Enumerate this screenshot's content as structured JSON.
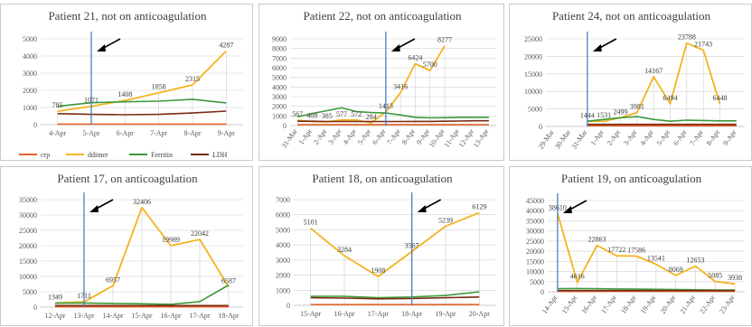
{
  "chart_data": [
    {
      "type": "line",
      "title": "Patient 21, not on anticoagulation",
      "categories": [
        "4-Apr",
        "5-Apr",
        "6-Apr",
        "7-Apr",
        "8-Apr",
        "9-Apr"
      ],
      "ylim": [
        0,
        5000
      ],
      "yticks": [
        "0",
        "1000",
        "2000",
        "3000",
        "4000",
        "5000"
      ],
      "x_labels_rotated": false,
      "marker_index": 1,
      "series": [
        {
          "name": "crp",
          "color": "#e5642a",
          "values": [
            30,
            30,
            30,
            30,
            30,
            30
          ]
        },
        {
          "name": "ddimer",
          "color": "#f4b31f",
          "values": [
            785,
            1071,
            1408,
            1858,
            2315,
            4287
          ]
        },
        {
          "name": "Ferritin",
          "color": "#3d9a3a",
          "values": [
            1070,
            1280,
            1330,
            1370,
            1480,
            1270
          ]
        },
        {
          "name": "LDH",
          "color": "#7a2a12",
          "values": [
            640,
            600,
            580,
            600,
            680,
            790
          ]
        }
      ],
      "labels": [
        {
          "series": 1,
          "index": 0,
          "text": "785"
        },
        {
          "series": 1,
          "index": 1,
          "text": "1071"
        },
        {
          "series": 1,
          "index": 2,
          "text": "1408"
        },
        {
          "series": 1,
          "index": 3,
          "text": "1858"
        },
        {
          "series": 1,
          "index": 4,
          "text": "2315"
        },
        {
          "series": 1,
          "index": 5,
          "text": "4287"
        }
      ]
    },
    {
      "type": "line",
      "title": "Patient 22, not on anticoagulation",
      "categories": [
        "31-Mar",
        "1-Apr",
        "2-Apr",
        "3-Apr",
        "4-Apr",
        "5-Apr",
        "6-Apr",
        "7-Apr",
        "8-Apr",
        "9-Apr",
        "10-Apr",
        "11-Apr",
        "12-Apr",
        "13-Apr"
      ],
      "ylim": [
        0,
        9000
      ],
      "yticks": [
        "0",
        "1000",
        "2000",
        "3000",
        "4000",
        "5000",
        "6000",
        "7000",
        "8000",
        "9000"
      ],
      "x_labels_rotated": true,
      "marker_index": 6,
      "series": [
        {
          "name": "crp",
          "color": "#e5642a",
          "values": [
            100,
            100,
            100,
            100,
            100,
            100,
            100,
            100,
            100,
            100,
            100,
            100,
            100,
            100
          ]
        },
        {
          "name": "ddimer",
          "color": "#f4b31f",
          "values": [
            567,
            408,
            385,
            577,
            572,
            284,
            1413,
            3416,
            6424,
            5700,
            8277,
            null,
            null,
            null
          ]
        },
        {
          "name": "Ferritin",
          "color": "#3d9a3a",
          "values": [
            900,
            1250,
            1550,
            1850,
            1450,
            1350,
            1300,
            1100,
            850,
            800,
            820,
            850,
            850,
            850
          ]
        },
        {
          "name": "LDH",
          "color": "#7a2a12",
          "values": [
            450,
            450,
            420,
            420,
            420,
            420,
            420,
            420,
            430,
            430,
            450,
            470,
            500,
            500
          ]
        }
      ],
      "labels": [
        {
          "series": 1,
          "index": 0,
          "text": "567"
        },
        {
          "series": 1,
          "index": 1,
          "text": "408"
        },
        {
          "series": 1,
          "index": 2,
          "text": "385"
        },
        {
          "series": 1,
          "index": 3,
          "text": "577"
        },
        {
          "series": 1,
          "index": 4,
          "text": "572"
        },
        {
          "series": 1,
          "index": 5,
          "text": "284"
        },
        {
          "series": 1,
          "index": 6,
          "text": "1413"
        },
        {
          "series": 1,
          "index": 7,
          "text": "3416"
        },
        {
          "series": 1,
          "index": 8,
          "text": "6424"
        },
        {
          "series": 1,
          "index": 9,
          "text": "5700"
        },
        {
          "series": 1,
          "index": 10,
          "text": "8277"
        }
      ]
    },
    {
      "type": "line",
      "title": "Patient 24, not on anticoagulation",
      "categories": [
        "29-Mar",
        "30-Mar",
        "31-Mar",
        "1-Apr",
        "2-Apr",
        "3-Apr",
        "4-Apr",
        "5-Apr",
        "6-Apr",
        "7-Apr",
        "8-Apr",
        "9-Apr"
      ],
      "ylim": [
        0,
        25000
      ],
      "yticks": [
        "0",
        "5000",
        "10000",
        "15000",
        "20000",
        "25000"
      ],
      "x_labels_rotated": true,
      "marker_index": 2,
      "series": [
        {
          "name": "crp",
          "color": "#e5642a",
          "values": [
            null,
            null,
            200,
            200,
            200,
            200,
            200,
            200,
            200,
            200,
            200,
            200
          ]
        },
        {
          "name": "ddimer",
          "color": "#f4b31f",
          "values": [
            null,
            null,
            1444,
            1531,
            2499,
            3981,
            14167,
            6494,
            23788,
            21743,
            6448,
            null
          ]
        },
        {
          "name": "Ferritin",
          "color": "#3d9a3a",
          "values": [
            null,
            null,
            1500,
            2000,
            2500,
            2800,
            2000,
            1500,
            1800,
            1700,
            1600,
            1600
          ]
        },
        {
          "name": "LDH",
          "color": "#7a2a12",
          "values": [
            null,
            null,
            600,
            600,
            600,
            600,
            600,
            600,
            600,
            600,
            600,
            600
          ]
        }
      ],
      "labels": [
        {
          "series": 1,
          "index": 2,
          "text": "1444"
        },
        {
          "series": 1,
          "index": 3,
          "text": "1531"
        },
        {
          "series": 1,
          "index": 4,
          "text": "2499"
        },
        {
          "series": 1,
          "index": 5,
          "text": "3981"
        },
        {
          "series": 1,
          "index": 6,
          "text": "14167"
        },
        {
          "series": 1,
          "index": 7,
          "text": "6494"
        },
        {
          "series": 1,
          "index": 8,
          "text": "23788"
        },
        {
          "series": 1,
          "index": 9,
          "text": "21743"
        },
        {
          "series": 1,
          "index": 10,
          "text": "6448"
        }
      ]
    },
    {
      "type": "line",
      "title": "Patient 17, on anticoagulation",
      "categories": [
        "12-Apr",
        "13-Apr",
        "14-Apr",
        "15-Apr",
        "16-Apr",
        "17-Apr",
        "18-Apr"
      ],
      "ylim": [
        0,
        35000
      ],
      "yticks": [
        "0",
        "5000",
        "10000",
        "15000",
        "20000",
        "25000",
        "30000",
        "35000"
      ],
      "x_labels_rotated": false,
      "marker_index": 1,
      "series": [
        {
          "name": "crp",
          "color": "#e5642a",
          "values": [
            100,
            100,
            100,
            100,
            100,
            100,
            100
          ]
        },
        {
          "name": "ddimer",
          "color": "#f4b31f",
          "values": [
            1349,
            1711,
            6957,
            32406,
            19989,
            22042,
            6587
          ]
        },
        {
          "name": "Ferritin",
          "color": "#3d9a3a",
          "values": [
            1300,
            1350,
            1200,
            1100,
            900,
            1800,
            7200
          ]
        },
        {
          "name": "LDH",
          "color": "#7a2a12",
          "values": [
            500,
            500,
            500,
            500,
            500,
            500,
            500
          ]
        }
      ],
      "labels": [
        {
          "series": 1,
          "index": 0,
          "text": "1349"
        },
        {
          "series": 1,
          "index": 1,
          "text": "1711"
        },
        {
          "series": 1,
          "index": 2,
          "text": "6957"
        },
        {
          "series": 1,
          "index": 3,
          "text": "32406"
        },
        {
          "series": 1,
          "index": 4,
          "text": "19989"
        },
        {
          "series": 1,
          "index": 5,
          "text": "22042"
        },
        {
          "series": 1,
          "index": 6,
          "text": "6587"
        }
      ]
    },
    {
      "type": "line",
      "title": "Patient 18, on anticoagulation",
      "categories": [
        "15-Apr",
        "16-Apr",
        "17-Apr",
        "18-Apr",
        "19-Apr",
        "20-Apr"
      ],
      "ylim": [
        0,
        7000
      ],
      "yticks": [
        "0",
        "1000",
        "2000",
        "3000",
        "4000",
        "5000",
        "6000",
        "7000"
      ],
      "x_labels_rotated": false,
      "marker_index": 3,
      "series": [
        {
          "name": "crp",
          "color": "#e5642a",
          "values": [
            50,
            50,
            50,
            50,
            50,
            50
          ]
        },
        {
          "name": "ddimer",
          "color": "#f4b31f",
          "values": [
            5101,
            3284,
            1908,
            3567,
            5239,
            6129
          ]
        },
        {
          "name": "Ferritin",
          "color": "#3d9a3a",
          "values": [
            600,
            600,
            500,
            550,
            650,
            900
          ]
        },
        {
          "name": "LDH",
          "color": "#7a2a12",
          "values": [
            500,
            480,
            430,
            450,
            500,
            550
          ]
        }
      ],
      "labels": [
        {
          "series": 1,
          "index": 0,
          "text": "5101"
        },
        {
          "series": 1,
          "index": 1,
          "text": "3284"
        },
        {
          "series": 1,
          "index": 2,
          "text": "1908"
        },
        {
          "series": 1,
          "index": 3,
          "text": "3567"
        },
        {
          "series": 1,
          "index": 4,
          "text": "5239"
        },
        {
          "series": 1,
          "index": 5,
          "text": "6129"
        }
      ]
    },
    {
      "type": "line",
      "title": "Patient 19, on anticoagulation",
      "categories": [
        "14-Apr",
        "15-Apr",
        "16-Apr",
        "17-Apr",
        "18-Apr",
        "19-Apr",
        "20-Apr",
        "21-Apr",
        "22-Apr",
        "23-Apr"
      ],
      "ylim": [
        0,
        45000
      ],
      "yticks": [
        "0",
        "5000",
        "10000",
        "15000",
        "20000",
        "25000",
        "30000",
        "35000",
        "40000",
        "45000"
      ],
      "x_labels_rotated": true,
      "marker_index": 0,
      "series": [
        {
          "name": "crp",
          "color": "#e5642a",
          "values": [
            200,
            200,
            200,
            200,
            200,
            200,
            200,
            200,
            200,
            200
          ]
        },
        {
          "name": "ddimer",
          "color": "#f4b31f",
          "values": [
            38610,
            4616,
            22863,
            17722,
            17586,
            13541,
            8069,
            12653,
            5085,
            3938
          ]
        },
        {
          "name": "Ferritin",
          "color": "#3d9a3a",
          "values": [
            1500,
            1600,
            1500,
            1400,
            1300,
            1200,
            1100,
            1000,
            900,
            900
          ]
        },
        {
          "name": "LDH",
          "color": "#7a2a12",
          "values": [
            600,
            600,
            600,
            600,
            600,
            600,
            600,
            600,
            600,
            600
          ]
        }
      ],
      "labels": [
        {
          "series": 1,
          "index": 0,
          "text": "38610"
        },
        {
          "series": 1,
          "index": 1,
          "text": "4616"
        },
        {
          "series": 1,
          "index": 2,
          "text": "22863"
        },
        {
          "series": 1,
          "index": 3,
          "text": "17722"
        },
        {
          "series": 1,
          "index": 4,
          "text": "17586"
        },
        {
          "series": 1,
          "index": 5,
          "text": "13541"
        },
        {
          "series": 1,
          "index": 6,
          "text": "8069"
        },
        {
          "series": 1,
          "index": 7,
          "text": "12653"
        },
        {
          "series": 1,
          "index": 8,
          "text": "5085"
        },
        {
          "series": 1,
          "index": 9,
          "text": "3938"
        }
      ]
    }
  ],
  "legend": {
    "items": [
      {
        "label": "crp",
        "color": "#e5642a"
      },
      {
        "label": "ddimer",
        "color": "#f4b31f"
      },
      {
        "label": "Ferritin",
        "color": "#3d9a3a"
      },
      {
        "label": "LDH",
        "color": "#7a2a12"
      }
    ],
    "placement": "bottom of first panel"
  },
  "marker_line_color": "#4a7fc1",
  "gridline_color": "#d0d0d0"
}
